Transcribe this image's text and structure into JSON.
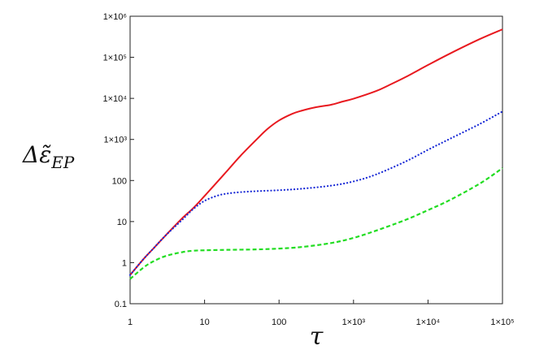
{
  "chart_data": {
    "type": "line",
    "title": "",
    "xlabel": "τ",
    "ylabel": "Δε̃",
    "ylabel_subscript": "EP",
    "xscale": "log",
    "yscale": "log",
    "xlim": [
      1,
      100000
    ],
    "ylim": [
      0.1,
      1000000
    ],
    "grid": false,
    "legend": "none",
    "x_ticks": [
      1,
      10,
      100,
      1000,
      10000,
      100000
    ],
    "x_tick_labels": [
      "1",
      "10",
      "100",
      "1×10³",
      "1×10⁴",
      "1×10⁵"
    ],
    "y_ticks": [
      0.1,
      1,
      10,
      100,
      1000,
      10000,
      100000,
      1000000
    ],
    "y_tick_labels": [
      "0.1",
      "1",
      "10",
      "100",
      "1×10³",
      "1×10⁴",
      "1×10⁵",
      "1×10⁶"
    ],
    "series": [
      {
        "color": "#e8191f",
        "style": "solid",
        "x": [
          1,
          1.5,
          2,
          3,
          5,
          7,
          10,
          15,
          20,
          30,
          50,
          70,
          100,
          150,
          200,
          300,
          500,
          700,
          1000,
          2000,
          3000,
          5000,
          10000,
          20000,
          50000,
          100000
        ],
        "y": [
          0.5,
          1.2,
          2.1,
          4.6,
          12,
          21,
          42,
          95,
          170,
          390,
          1000,
          1800,
          2900,
          4200,
          5000,
          6000,
          7000,
          8300,
          9800,
          15000,
          21000,
          33000,
          65000,
          125000,
          280000,
          480000
        ]
      },
      {
        "color": "#1a2bd6",
        "style": "dotted",
        "x": [
          1,
          1.5,
          2,
          3,
          5,
          7,
          10,
          15,
          20,
          30,
          50,
          100,
          200,
          500,
          1000,
          2000,
          5000,
          10000,
          20000,
          50000,
          100000
        ],
        "y": [
          0.5,
          1.2,
          2.1,
          4.6,
          11,
          20,
          32,
          43,
          48,
          52,
          55,
          58,
          63,
          75,
          95,
          140,
          290,
          560,
          1050,
          2400,
          4800
        ]
      },
      {
        "color": "#22dd22",
        "style": "dashed",
        "x": [
          1,
          1.5,
          2,
          3,
          5,
          7,
          10,
          20,
          50,
          100,
          200,
          500,
          1000,
          2000,
          5000,
          10000,
          20000,
          50000,
          100000
        ],
        "y": [
          0.4,
          0.75,
          1.05,
          1.45,
          1.8,
          1.95,
          2.0,
          2.05,
          2.1,
          2.2,
          2.4,
          3.0,
          4.0,
          6.0,
          11,
          19,
          34,
          85,
          200
        ]
      }
    ]
  }
}
